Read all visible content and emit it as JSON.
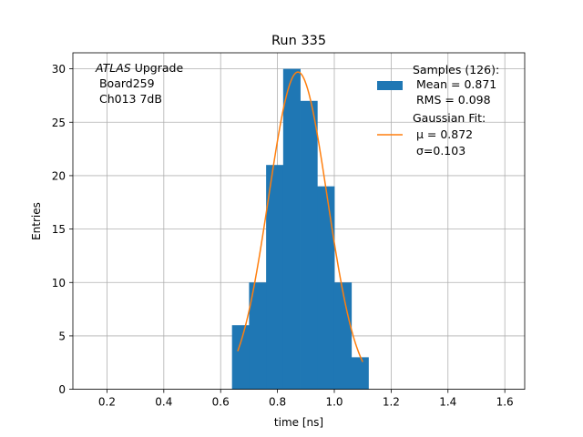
{
  "chart_data": {
    "type": "bar",
    "title": "Run 335",
    "xlabel": "time [ns]",
    "ylabel": "Entries",
    "xlim": [
      0.08,
      1.67
    ],
    "ylim": [
      0,
      31.5
    ],
    "xticks": [
      0.2,
      0.4,
      0.6,
      0.8,
      1.0,
      1.2,
      1.4,
      1.6
    ],
    "xtick_labels": [
      "0.2",
      "0.4",
      "0.6",
      "0.8",
      "1.0",
      "1.2",
      "1.4",
      "1.6"
    ],
    "yticks": [
      0,
      5,
      10,
      15,
      20,
      25,
      30
    ],
    "ytick_labels": [
      "0",
      "5",
      "10",
      "15",
      "20",
      "25",
      "30"
    ],
    "grid": true,
    "legend_position": "top-right",
    "annotation": {
      "line1_italic": "ATLAS",
      "line1_rest": " Upgrade",
      "line2": " Board259",
      "line3": " Ch013 7dB"
    },
    "histogram": {
      "name_lines": [
        "Samples (126):",
        " Mean = 0.871",
        " RMS = 0.098"
      ],
      "color": "#1f77b4",
      "bin_edges": [
        0.64,
        0.7,
        0.76,
        0.82,
        0.88,
        0.94,
        1.0,
        1.06,
        1.12
      ],
      "counts": [
        6,
        10,
        21,
        30,
        27,
        19,
        10,
        3
      ]
    },
    "fit": {
      "name_lines": [
        "Gaussian Fit:",
        " μ = 0.872",
        " σ=0.103"
      ],
      "color": "#ff7f0e",
      "amplitude": 29.7,
      "mu": 0.872,
      "sigma": 0.103,
      "x_range": [
        0.66,
        1.1
      ]
    }
  }
}
